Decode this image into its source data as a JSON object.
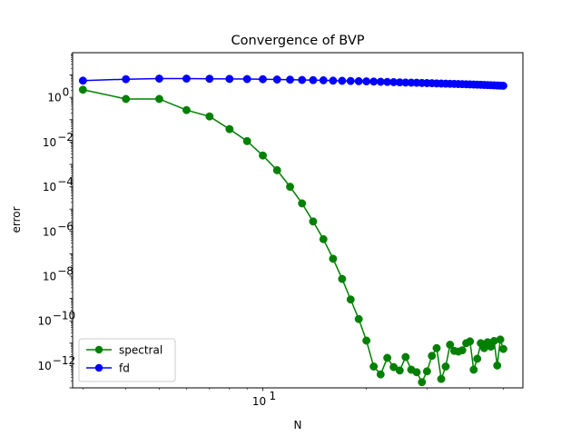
{
  "chart_data": {
    "type": "line",
    "title": "Convergence of BVP",
    "xlabel": "N",
    "ylabel": "error",
    "xscale": "log",
    "yscale": "log",
    "xlim": [
      2.8,
      57
    ],
    "ylim": [
      1e-13,
      100
    ],
    "grid": false,
    "legend_position": "lower left",
    "x_ticks": [
      {
        "value": 10,
        "label": "10",
        "exp": "1"
      }
    ],
    "y_ticks": [
      {
        "value": 1,
        "label": "10",
        "exp": "0"
      },
      {
        "value": 0.01,
        "label": "10",
        "exp": "−2"
      },
      {
        "value": 0.0001,
        "label": "10",
        "exp": "−4"
      },
      {
        "value": 1e-06,
        "label": "10",
        "exp": "−6"
      },
      {
        "value": 1e-08,
        "label": "10",
        "exp": "−8"
      },
      {
        "value": 1e-10,
        "label": "10",
        "exp": "−10"
      },
      {
        "value": 1e-12,
        "label": "10",
        "exp": "−12"
      }
    ],
    "x": [
      3,
      4,
      5,
      6,
      7,
      8,
      9,
      10,
      11,
      12,
      13,
      14,
      15,
      16,
      17,
      18,
      19,
      20,
      21,
      22,
      23,
      24,
      25,
      26,
      27,
      28,
      29,
      30,
      31,
      32,
      33,
      34,
      35,
      36,
      37,
      38,
      39,
      40,
      41,
      42,
      43,
      44,
      45,
      46,
      47,
      48,
      49,
      50
    ],
    "series": [
      {
        "name": "spectral",
        "color": "#008000",
        "values": [
          2.2,
          0.85,
          0.85,
          0.27,
          0.14,
          0.038,
          0.011,
          0.0025,
          0.00055,
          0.0001,
          1.8e-05,
          2.8e-06,
          4.5e-07,
          6e-08,
          7.5e-09,
          9e-10,
          1.2e-10,
          1.3e-11,
          9e-13,
          4e-13,
          2.2e-12,
          8.5e-13,
          6e-13,
          2.4e-12,
          6.5e-13,
          5e-13,
          1.8e-13,
          5.5e-13,
          2.7e-12,
          6e-12,
          2.5e-13,
          9e-13,
          8.5e-12,
          4.5e-12,
          4.2e-12,
          4.8e-12,
          1e-11,
          1.2e-11,
          6.5e-13,
          2e-12,
          1e-11,
          6e-12,
          1.1e-11,
          7e-12,
          1.25e-11,
          1e-12,
          1.45e-11,
          5.5e-12
        ]
      },
      {
        "name": "fd",
        "color": "#0000ff",
        "values": [
          5.6,
          6.5,
          6.9,
          6.9,
          6.8,
          6.7,
          6.6,
          6.5,
          6.3,
          6.2,
          6.0,
          5.9,
          5.8,
          5.6,
          5.5,
          5.4,
          5.3,
          5.2,
          5.1,
          5.0,
          4.9,
          4.8,
          4.7,
          4.6,
          4.55,
          4.5,
          4.4,
          4.35,
          4.3,
          4.2,
          4.15,
          4.1,
          4.05,
          4.0,
          3.95,
          3.9,
          3.85,
          3.8,
          3.75,
          3.7,
          3.65,
          3.6,
          3.55,
          3.5,
          3.45,
          3.4,
          3.35,
          3.3
        ]
      }
    ]
  }
}
